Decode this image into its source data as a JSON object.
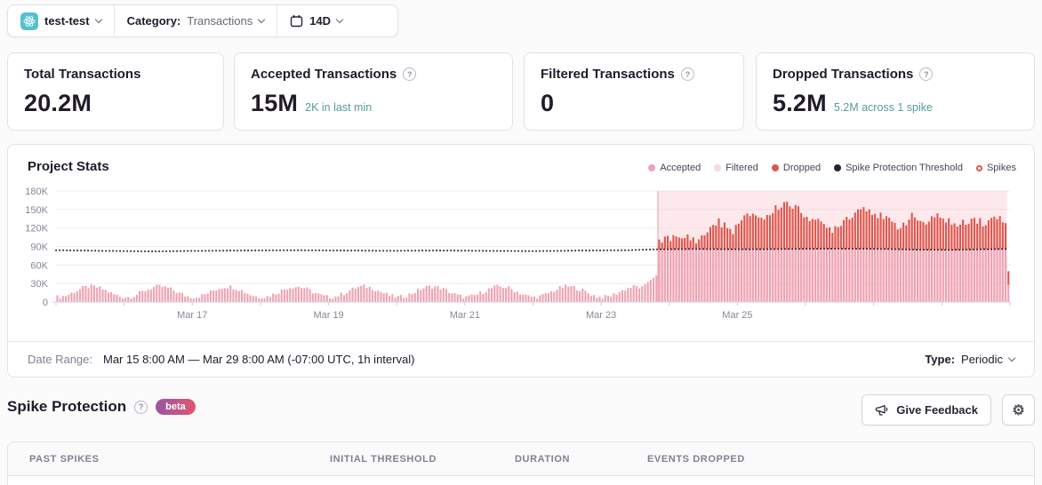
{
  "toolbar": {
    "project": "test-test",
    "category_label": "Category:",
    "category_value": "Transactions",
    "date_range": "14D"
  },
  "cards": [
    {
      "title": "Total Transactions",
      "value": "20.2M",
      "sub": ""
    },
    {
      "title": "Accepted Transactions",
      "value": "15M",
      "sub": "2K in last min"
    },
    {
      "title": "Filtered Transactions",
      "value": "0",
      "sub": ""
    },
    {
      "title": "Dropped Transactions",
      "value": "5.2M",
      "sub": "5.2M across 1 spike"
    }
  ],
  "chart_panel": {
    "title": "Project Stats",
    "legend": [
      {
        "label": "Accepted"
      },
      {
        "label": "Filtered"
      },
      {
        "label": "Dropped"
      },
      {
        "label": "Spike Protection Threshold"
      },
      {
        "label": "Spikes"
      }
    ],
    "footer": {
      "label": "Date Range:",
      "value": "Mar 15 8:00 AM — Mar 29 8:00 AM (-07:00 UTC, 1h interval)",
      "type_label": "Type:",
      "type_value": "Periodic"
    }
  },
  "chart_data": {
    "type": "bar",
    "stacked": true,
    "title": "Project Stats",
    "x_start": "Mar 15 8:00 AM",
    "x_end": "Mar 29 8:00 AM",
    "interval_hours": 1,
    "n_bars": 336,
    "ylim": [
      0,
      180000
    ],
    "yticks": [
      "180K",
      "150K",
      "120K",
      "90K",
      "60K",
      "30K",
      "0"
    ],
    "xtick_labels": [
      {
        "label": "Mar 17",
        "day": 2
      },
      {
        "label": "Mar 19",
        "day": 4
      },
      {
        "label": "Mar 21",
        "day": 6
      },
      {
        "label": "Mar 23",
        "day": 8
      },
      {
        "label": "Mar 25",
        "day": 10
      }
    ],
    "series_names": [
      "Accepted",
      "Filtered",
      "Dropped",
      "Spike Protection Threshold",
      "Spikes"
    ],
    "filtered_constant": 0,
    "accepted_pattern": {
      "base": 16500,
      "amplitude": 8500,
      "period_hours": 24,
      "jitter": 3500,
      "min": 5500,
      "max": 31500
    },
    "pre_spike_ramp": {
      "start_hour": 205,
      "end_hour": 211,
      "from": 22000,
      "step": 3500
    },
    "threshold_points_k": [
      [
        0,
        84
      ],
      [
        0.05,
        83
      ],
      [
        0.1,
        82
      ],
      [
        0.15,
        83
      ],
      [
        0.2,
        83.5
      ],
      [
        0.25,
        84
      ],
      [
        0.3,
        83.5
      ],
      [
        0.35,
        83
      ],
      [
        0.4,
        83.5
      ],
      [
        0.45,
        83
      ],
      [
        0.5,
        82.5
      ],
      [
        0.55,
        83.5
      ],
      [
        0.6,
        84
      ],
      [
        0.63,
        85.5
      ],
      [
        0.67,
        86
      ],
      [
        0.72,
        85.5
      ],
      [
        0.77,
        86
      ],
      [
        0.82,
        86.5
      ],
      [
        0.87,
        86
      ],
      [
        0.9,
        85
      ],
      [
        0.94,
        84.5
      ],
      [
        0.97,
        85.5
      ],
      [
        1,
        86
      ]
    ],
    "spike": {
      "start_hour": 212,
      "end_hour": 335,
      "count": 1,
      "dropped_total": "5.2M"
    },
    "dropped_total_points_k": [
      [
        0.631,
        95
      ],
      [
        0.638,
        108
      ],
      [
        0.645,
        104
      ],
      [
        0.652,
        100
      ],
      [
        0.659,
        106
      ],
      [
        0.666,
        103
      ],
      [
        0.673,
        100
      ],
      [
        0.68,
        112
      ],
      [
        0.687,
        125
      ],
      [
        0.694,
        130
      ],
      [
        0.7,
        122
      ],
      [
        0.707,
        115
      ],
      [
        0.714,
        125
      ],
      [
        0.721,
        136
      ],
      [
        0.728,
        144
      ],
      [
        0.735,
        140
      ],
      [
        0.742,
        134
      ],
      [
        0.749,
        146
      ],
      [
        0.756,
        155
      ],
      [
        0.763,
        162
      ],
      [
        0.77,
        157
      ],
      [
        0.777,
        148
      ],
      [
        0.784,
        142
      ],
      [
        0.791,
        136
      ],
      [
        0.798,
        128
      ],
      [
        0.805,
        122
      ],
      [
        0.812,
        118
      ],
      [
        0.819,
        126
      ],
      [
        0.826,
        135
      ],
      [
        0.833,
        142
      ],
      [
        0.84,
        150
      ],
      [
        0.847,
        155
      ],
      [
        0.854,
        148
      ],
      [
        0.861,
        140
      ],
      [
        0.868,
        134
      ],
      [
        0.875,
        128
      ],
      [
        0.882,
        122
      ],
      [
        0.889,
        130
      ],
      [
        0.896,
        138
      ],
      [
        0.903,
        134
      ],
      [
        0.91,
        127
      ],
      [
        0.917,
        133
      ],
      [
        0.924,
        140
      ],
      [
        0.931,
        135
      ],
      [
        0.938,
        128
      ],
      [
        0.945,
        122
      ],
      [
        0.952,
        130
      ],
      [
        0.959,
        138
      ],
      [
        0.966,
        132
      ],
      [
        0.973,
        126
      ],
      [
        0.98,
        134
      ],
      [
        0.987,
        140
      ],
      [
        0.994,
        133
      ],
      [
        1.0,
        137
      ]
    ],
    "last_bar": {
      "accepted": 28000,
      "dropped": 22000
    },
    "colors": {
      "accepted": "#efa2b2",
      "filtered": "#f7dade",
      "dropped": "#e0564b",
      "threshold": "#2b2233",
      "spike_region": "#f6aeba",
      "spike_edge": "#f3b3bd",
      "grid": "#ededf1",
      "axis": "#d6d2dc",
      "tick": "#cfcbd6",
      "label": "#8a8496"
    }
  },
  "spike_section": {
    "title": "Spike Protection",
    "badge": "beta",
    "feedback_label": "Give Feedback"
  },
  "table": {
    "headers": [
      "PAST SPIKES",
      "INITIAL THRESHOLD",
      "DURATION",
      "EVENTS DROPPED"
    ]
  }
}
